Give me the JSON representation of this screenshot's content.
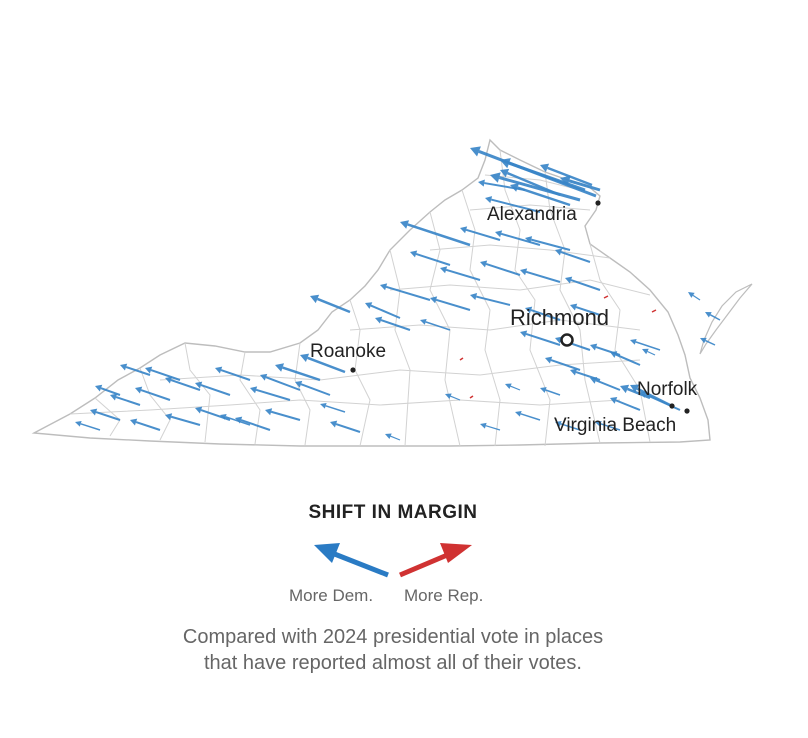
{
  "map": {
    "cities": [
      {
        "name": "Alexandria",
        "style": "dot"
      },
      {
        "name": "Richmond",
        "style": "ring"
      },
      {
        "name": "Roanoke",
        "style": "dot"
      },
      {
        "name": "Norfolk",
        "style": "dot"
      },
      {
        "name": "Virginia Beach",
        "style": "dot"
      }
    ]
  },
  "legend": {
    "title": "SHIFT IN MARGIN",
    "dem_label": "More Dem.",
    "rep_label": "More Rep.",
    "dem_color": "#2a7bc4",
    "rep_color": "#d03232"
  },
  "note": {
    "line1": "Compared with 2024 presidential vote in places",
    "line2": "that have reported almost all of their votes."
  },
  "colors": {
    "dem_arrow": "#3a86c8",
    "rep_arrow": "#d03232",
    "border": "#c8c8c8",
    "outline": "#bdbdbd"
  }
}
